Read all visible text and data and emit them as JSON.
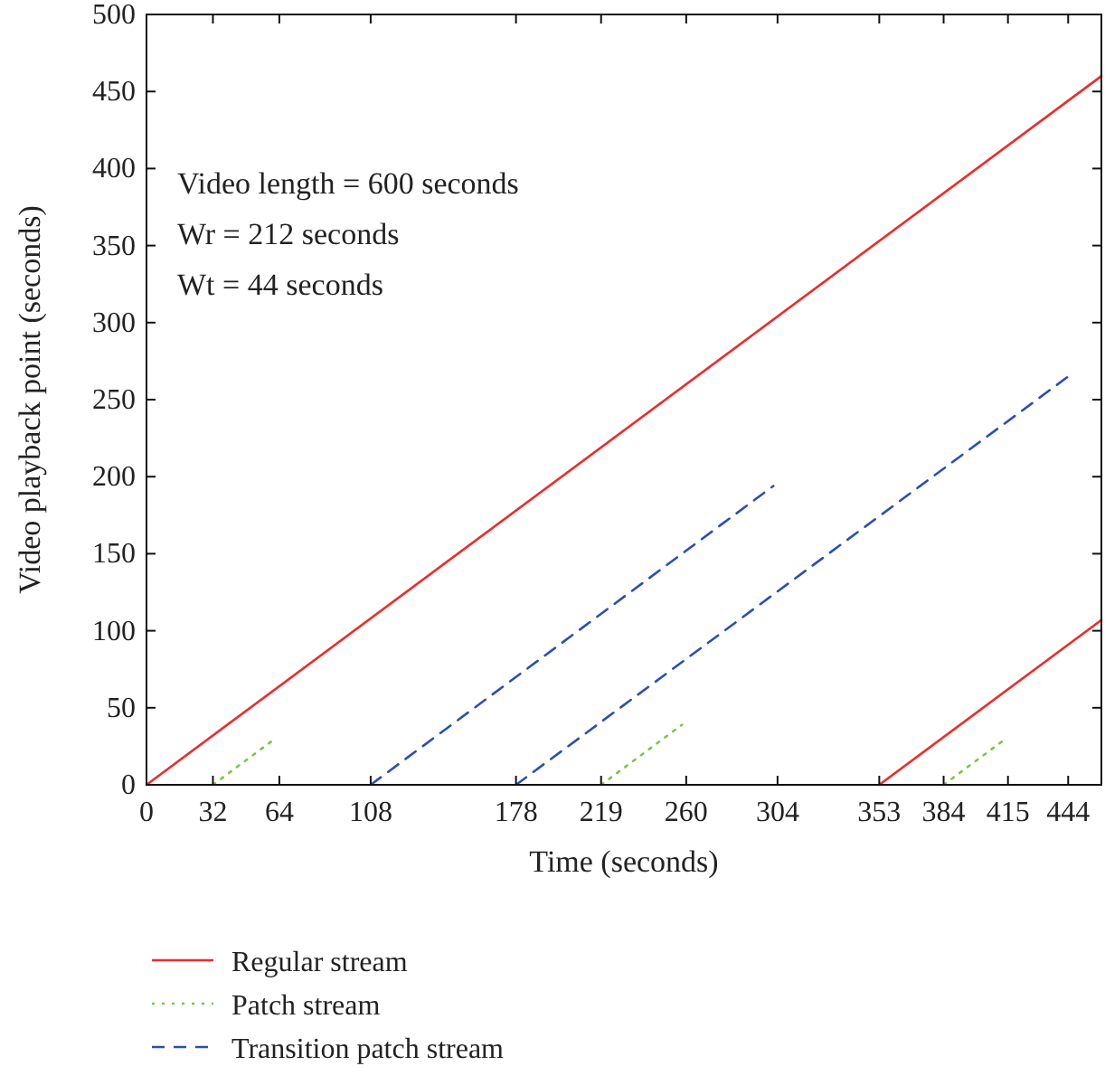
{
  "chart_data": {
    "type": "line",
    "xlabel": "Time (seconds)",
    "ylabel": "Video playback point (seconds)",
    "xlim": [
      0,
      460
    ],
    "ylim": [
      0,
      500
    ],
    "xticks": [
      0,
      32,
      64,
      108,
      178,
      219,
      260,
      304,
      353,
      384,
      415,
      444
    ],
    "yticks": [
      0,
      50,
      100,
      150,
      200,
      250,
      300,
      350,
      400,
      450,
      500
    ],
    "annotations": [
      "Video length = 600 seconds",
      "Wr = 212 seconds",
      "Wt = 44 seconds"
    ],
    "legend": "bottom",
    "grid": false,
    "series": [
      {
        "name": "Regular stream",
        "color": "#ee2b2b",
        "line_style": "solid",
        "x": [
          0,
          460,
          406,
          353,
          460
        ],
        "values": [
          0,
          460,
          null,
          0,
          107
        ]
      },
      {
        "name": "Patch stream",
        "color": "#7cc644",
        "line_style": "dotted",
        "x": [
          32,
          61,
          140,
          219,
          258,
          320,
          384,
          413
        ],
        "values": [
          0,
          29,
          null,
          0,
          39,
          null,
          0,
          29
        ]
      },
      {
        "name": "Transition patch stream",
        "color": "#2b4fb0",
        "line_style": "dashed",
        "x": [
          108,
          302,
          240,
          178,
          445
        ],
        "values": [
          0,
          194,
          null,
          0,
          266
        ]
      }
    ]
  }
}
